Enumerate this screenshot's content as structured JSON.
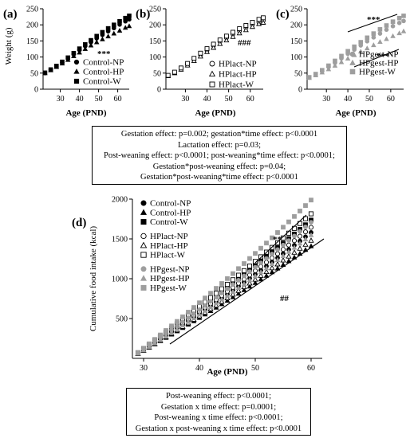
{
  "chart_data": [
    {
      "panel": "(a)",
      "type": "scatter",
      "ylabel": "Weight (g)",
      "xlabel": "Age (PND)",
      "xlim": [
        21,
        66
      ],
      "ylim": [
        0,
        250
      ],
      "xticks": [
        30,
        40,
        50,
        60
      ],
      "yticks": [
        0,
        50,
        100,
        150,
        200,
        250
      ],
      "x": [
        22,
        25,
        28,
        31,
        34,
        37,
        40,
        43,
        46,
        49,
        52,
        55,
        58,
        61,
        64,
        66
      ],
      "series": [
        {
          "name": "Control-NP",
          "marker": "circle-filled",
          "color": "#000000",
          "values": [
            50,
            60,
            71,
            83,
            96,
            109,
            122,
            134,
            146,
            158,
            169,
            180,
            190,
            201,
            211,
            217
          ]
        },
        {
          "name": "Control-HP",
          "marker": "triangle-filled",
          "color": "#000000",
          "values": [
            50,
            59,
            69,
            80,
            91,
            103,
            114,
            125,
            136,
            146,
            155,
            164,
            173,
            182,
            191,
            196
          ]
        },
        {
          "name": "Control-W",
          "marker": "square-filled",
          "color": "#000000",
          "values": [
            51,
            61,
            72,
            85,
            98,
            112,
            126,
            139,
            152,
            165,
            177,
            189,
            200,
            211,
            221,
            228
          ]
        }
      ],
      "annotations": [
        "***"
      ]
    },
    {
      "panel": "(b)",
      "type": "scatter",
      "xlabel": "Age (PND)",
      "xlim": [
        21,
        66
      ],
      "ylim": [
        0,
        250
      ],
      "xticks": [
        30,
        40,
        50,
        60
      ],
      "yticks": [
        0,
        50,
        100,
        150,
        200,
        250
      ],
      "x": [
        22,
        25,
        28,
        31,
        34,
        37,
        40,
        43,
        46,
        49,
        52,
        55,
        58,
        61,
        64,
        66
      ],
      "series": [
        {
          "name": "HPlact-NP",
          "marker": "circle-open",
          "color": "#000000",
          "values": [
            42,
            52,
            64,
            78,
            92,
            107,
            121,
            135,
            148,
            160,
            171,
            181,
            191,
            200,
            208,
            213
          ]
        },
        {
          "name": "HPlact-HP",
          "marker": "triangle-open",
          "color": "#000000",
          "values": [
            41,
            50,
            61,
            74,
            88,
            102,
            116,
            129,
            141,
            152,
            163,
            174,
            184,
            194,
            203,
            207
          ]
        },
        {
          "name": "HPlact-W",
          "marker": "square-open",
          "color": "#000000",
          "values": [
            43,
            53,
            66,
            80,
            96,
            112,
            126,
            140,
            153,
            165,
            177,
            188,
            198,
            208,
            217,
            222
          ]
        }
      ],
      "annotations": [
        "###"
      ]
    },
    {
      "panel": "(c)",
      "type": "scatter",
      "xlabel": "Age (PND)",
      "xlim": [
        21,
        66
      ],
      "ylim": [
        0,
        250
      ],
      "xticks": [
        30,
        40,
        50,
        60
      ],
      "yticks": [
        0,
        50,
        100,
        150,
        200,
        250
      ],
      "x": [
        22,
        25,
        28,
        31,
        34,
        37,
        40,
        43,
        46,
        49,
        52,
        55,
        58,
        61,
        64,
        66
      ],
      "series": [
        {
          "name": "HPgest-NP",
          "marker": "circle-filled",
          "color": "#9e9e9e",
          "values": [
            36,
            45,
            56,
            69,
            82,
            96,
            110,
            123,
            136,
            149,
            161,
            173,
            185,
            196,
            206,
            212
          ]
        },
        {
          "name": "HPgest-HP",
          "marker": "triangle-filled",
          "color": "#9e9e9e",
          "values": [
            35,
            43,
            52,
            62,
            73,
            84,
            95,
            106,
            117,
            127,
            137,
            147,
            156,
            165,
            174,
            180
          ]
        },
        {
          "name": "HPgest-W",
          "marker": "square-filled",
          "color": "#9e9e9e",
          "values": [
            37,
            47,
            59,
            73,
            88,
            103,
            118,
            132,
            146,
            160,
            173,
            186,
            198,
            210,
            221,
            228
          ]
        }
      ],
      "annotations": [
        "***",
        "***"
      ]
    },
    {
      "panel": "(d)",
      "type": "scatter",
      "ylabel": "Cumulative food intake (kcal)",
      "xlabel": "Age (PND)",
      "xlim": [
        28,
        62
      ],
      "ylim": [
        0,
        2000
      ],
      "xticks": [
        30,
        40,
        50,
        60
      ],
      "yticks": [
        500,
        1000,
        1500,
        2000
      ],
      "x": [
        29,
        30,
        31,
        32,
        33,
        34,
        35,
        36,
        37,
        38,
        39,
        40,
        41,
        42,
        43,
        44,
        45,
        46,
        47,
        48,
        49,
        50,
        51,
        52,
        53,
        54,
        55,
        56,
        57,
        58,
        59,
        60
      ],
      "series": [
        {
          "name": "Control-NP",
          "marker": "circle-filled",
          "color": "#000000",
          "values": [
            62,
            106,
            150,
            195,
            240,
            285,
            331,
            377,
            423,
            470,
            517,
            564,
            612,
            660,
            708,
            757,
            806,
            855,
            905,
            955,
            1005,
            1056,
            1107,
            1158,
            1210,
            1262,
            1314,
            1367,
            1420,
            1473,
            1527,
            1581
          ]
        },
        {
          "name": "Control-HP",
          "marker": "triangle-filled",
          "color": "#000000",
          "values": [
            56,
            96,
            136,
            177,
            218,
            259,
            300,
            341,
            383,
            425,
            467,
            509,
            552,
            595,
            638,
            681,
            725,
            769,
            813,
            857,
            902,
            947,
            992,
            1037,
            1083,
            1129,
            1175,
            1221,
            1268,
            1315,
            1362,
            1409
          ]
        },
        {
          "name": "Control-W",
          "marker": "square-filled",
          "color": "#000000",
          "values": [
            68,
            117,
            166,
            216,
            266,
            316,
            367,
            418,
            469,
            521,
            573,
            625,
            678,
            731,
            784,
            838,
            892,
            946,
            1000,
            1055,
            1110,
            1165,
            1221,
            1277,
            1333,
            1390,
            1447,
            1504,
            1562,
            1620,
            1678,
            1737
          ]
        },
        {
          "name": "HPlact-NP",
          "marker": "circle-open",
          "color": "#000000",
          "values": [
            64,
            110,
            156,
            203,
            250,
            297,
            345,
            393,
            441,
            490,
            539,
            588,
            638,
            688,
            738,
            789,
            840,
            891,
            943,
            995,
            1047,
            1100,
            1153,
            1206,
            1260,
            1314,
            1368,
            1423,
            1478,
            1533,
            1589,
            1645
          ]
        },
        {
          "name": "HPlact-HP",
          "marker": "triangle-open",
          "color": "#000000",
          "values": [
            58,
            99,
            141,
            183,
            225,
            268,
            311,
            354,
            398,
            442,
            486,
            530,
            575,
            620,
            665,
            711,
            757,
            803,
            849,
            896,
            943,
            990,
            1038,
            1086,
            1134,
            1182,
            1231,
            1280,
            1329,
            1379,
            1429,
            1479
          ]
        },
        {
          "name": "HPlact-W",
          "marker": "square-open",
          "color": "#000000",
          "values": [
            70,
            121,
            172,
            224,
            276,
            329,
            382,
            435,
            489,
            543,
            597,
            652,
            707,
            762,
            818,
            874,
            930,
            987,
            1044,
            1101,
            1159,
            1217,
            1275,
            1334,
            1393,
            1452,
            1512,
            1572,
            1632,
            1693,
            1754,
            1815
          ]
        },
        {
          "name": "HPgest-NP",
          "marker": "circle-filled",
          "color": "#9e9e9e",
          "values": [
            66,
            114,
            162,
            211,
            260,
            309,
            359,
            409,
            459,
            510,
            561,
            612,
            664,
            716,
            768,
            821,
            874,
            927,
            981,
            1035,
            1089,
            1144,
            1199,
            1254,
            1310,
            1366,
            1422,
            1479,
            1536,
            1593,
            1651,
            1709
          ]
        },
        {
          "name": "HPgest-HP",
          "marker": "triangle-filled",
          "color": "#9e9e9e",
          "values": [
            60,
            103,
            146,
            190,
            234,
            278,
            323,
            368,
            413,
            459,
            505,
            551,
            598,
            645,
            692,
            740,
            788,
            836,
            885,
            934,
            983,
            1033,
            1083,
            1133,
            1184,
            1235,
            1286,
            1338,
            1390,
            1442,
            1495,
            1548
          ]
        },
        {
          "name": "HPgest-W",
          "marker": "square-filled",
          "color": "#9e9e9e",
          "values": [
            74,
            128,
            183,
            238,
            294,
            350,
            407,
            464,
            522,
            580,
            639,
            698,
            758,
            818,
            879,
            940,
            1002,
            1064,
            1127,
            1190,
            1254,
            1318,
            1383,
            1448,
            1514,
            1580,
            1647,
            1714,
            1782,
            1850,
            1919,
            1988
          ]
        }
      ],
      "annotations": [
        "**",
        "##"
      ]
    }
  ],
  "stats_box_growth": [
    "Gestation effect: p=0.002; gestation*time effect: p<0.0001",
    "Lactation effect: p=0.03;",
    "Post-weaning effect: p<0.0001; post-weaning*time effect: p<0.0001;",
    "Gestation*post-weaning effect: p=0.04;",
    "Gestation*post-weaning*time effect: p<0.0001"
  ],
  "stats_box_food": [
    "Post-weaning effect: p<0.0001;",
    "Gestation x time effect: p=0.0001;",
    "Post-weaning x time effect: p<0.0001;",
    "Gestation x post-weaning x time effect: p<0.0001"
  ]
}
